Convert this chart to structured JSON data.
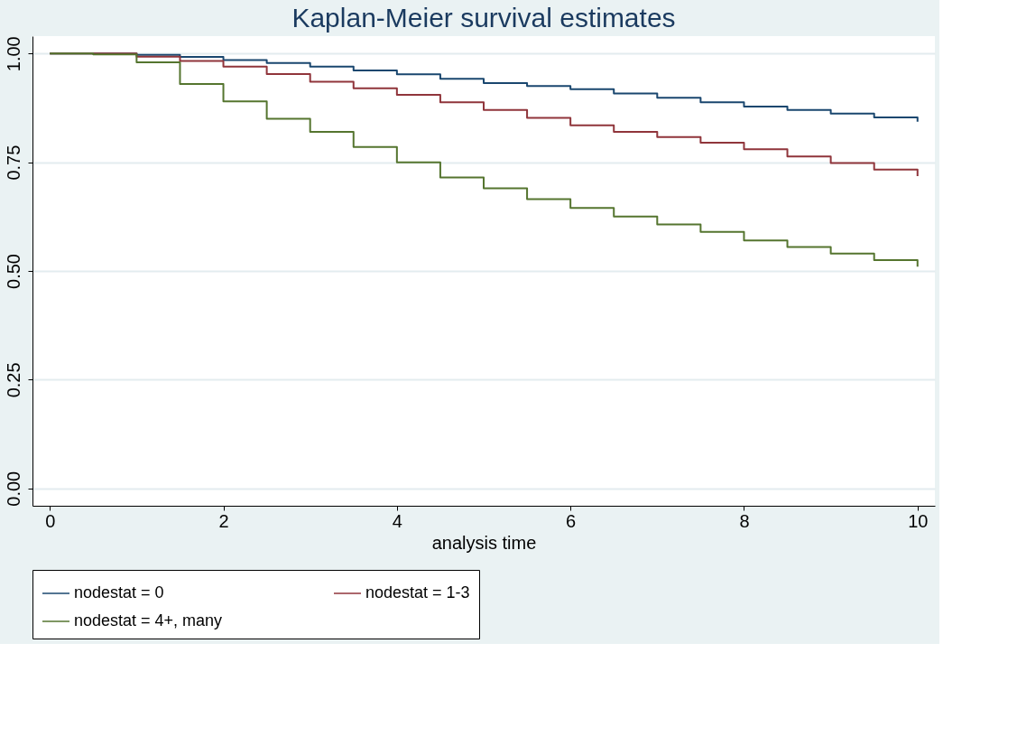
{
  "chart_data": {
    "type": "step",
    "title": "Kaplan-Meier survival estimates",
    "xlabel": "analysis time",
    "x": [
      0,
      0.5,
      1,
      1.5,
      2,
      2.5,
      3,
      3.5,
      4,
      4.5,
      5,
      5.5,
      6,
      6.5,
      7,
      7.5,
      8,
      8.5,
      9,
      9.5,
      10
    ],
    "series": [
      {
        "name": "nodestat = 0",
        "color": "#1a476f",
        "values": [
          1.0,
          1.0,
          0.997,
          0.992,
          0.985,
          0.978,
          0.97,
          0.961,
          0.952,
          0.942,
          0.932,
          0.925,
          0.918,
          0.908,
          0.898,
          0.888,
          0.878,
          0.87,
          0.862,
          0.853,
          0.843
        ]
      },
      {
        "name": "nodestat = 1-3",
        "color": "#90353b",
        "values": [
          1.0,
          1.0,
          0.993,
          0.983,
          0.97,
          0.953,
          0.935,
          0.92,
          0.905,
          0.888,
          0.87,
          0.852,
          0.835,
          0.82,
          0.808,
          0.795,
          0.78,
          0.763,
          0.748,
          0.733,
          0.718
        ]
      },
      {
        "name": "nodestat = 4+, many",
        "color": "#55752f",
        "values": [
          1.0,
          0.998,
          0.98,
          0.93,
          0.89,
          0.85,
          0.82,
          0.785,
          0.75,
          0.715,
          0.69,
          0.665,
          0.645,
          0.625,
          0.607,
          0.59,
          0.57,
          0.555,
          0.54,
          0.525,
          0.51
        ]
      }
    ],
    "xlim": [
      -0.2,
      10.2
    ],
    "xticks": [
      0,
      2,
      4,
      6,
      8,
      10
    ],
    "ylim": [
      -0.04,
      1.04
    ],
    "yticks": [
      {
        "value": 0,
        "label": "0.00"
      },
      {
        "value": 0.25,
        "label": "0.25"
      },
      {
        "value": 0.5,
        "label": "0.50"
      },
      {
        "value": 0.75,
        "label": "0.75"
      },
      {
        "value": 1,
        "label": "1.00"
      }
    ],
    "grid": "y",
    "legend": "bottom",
    "line_style": "solid"
  }
}
